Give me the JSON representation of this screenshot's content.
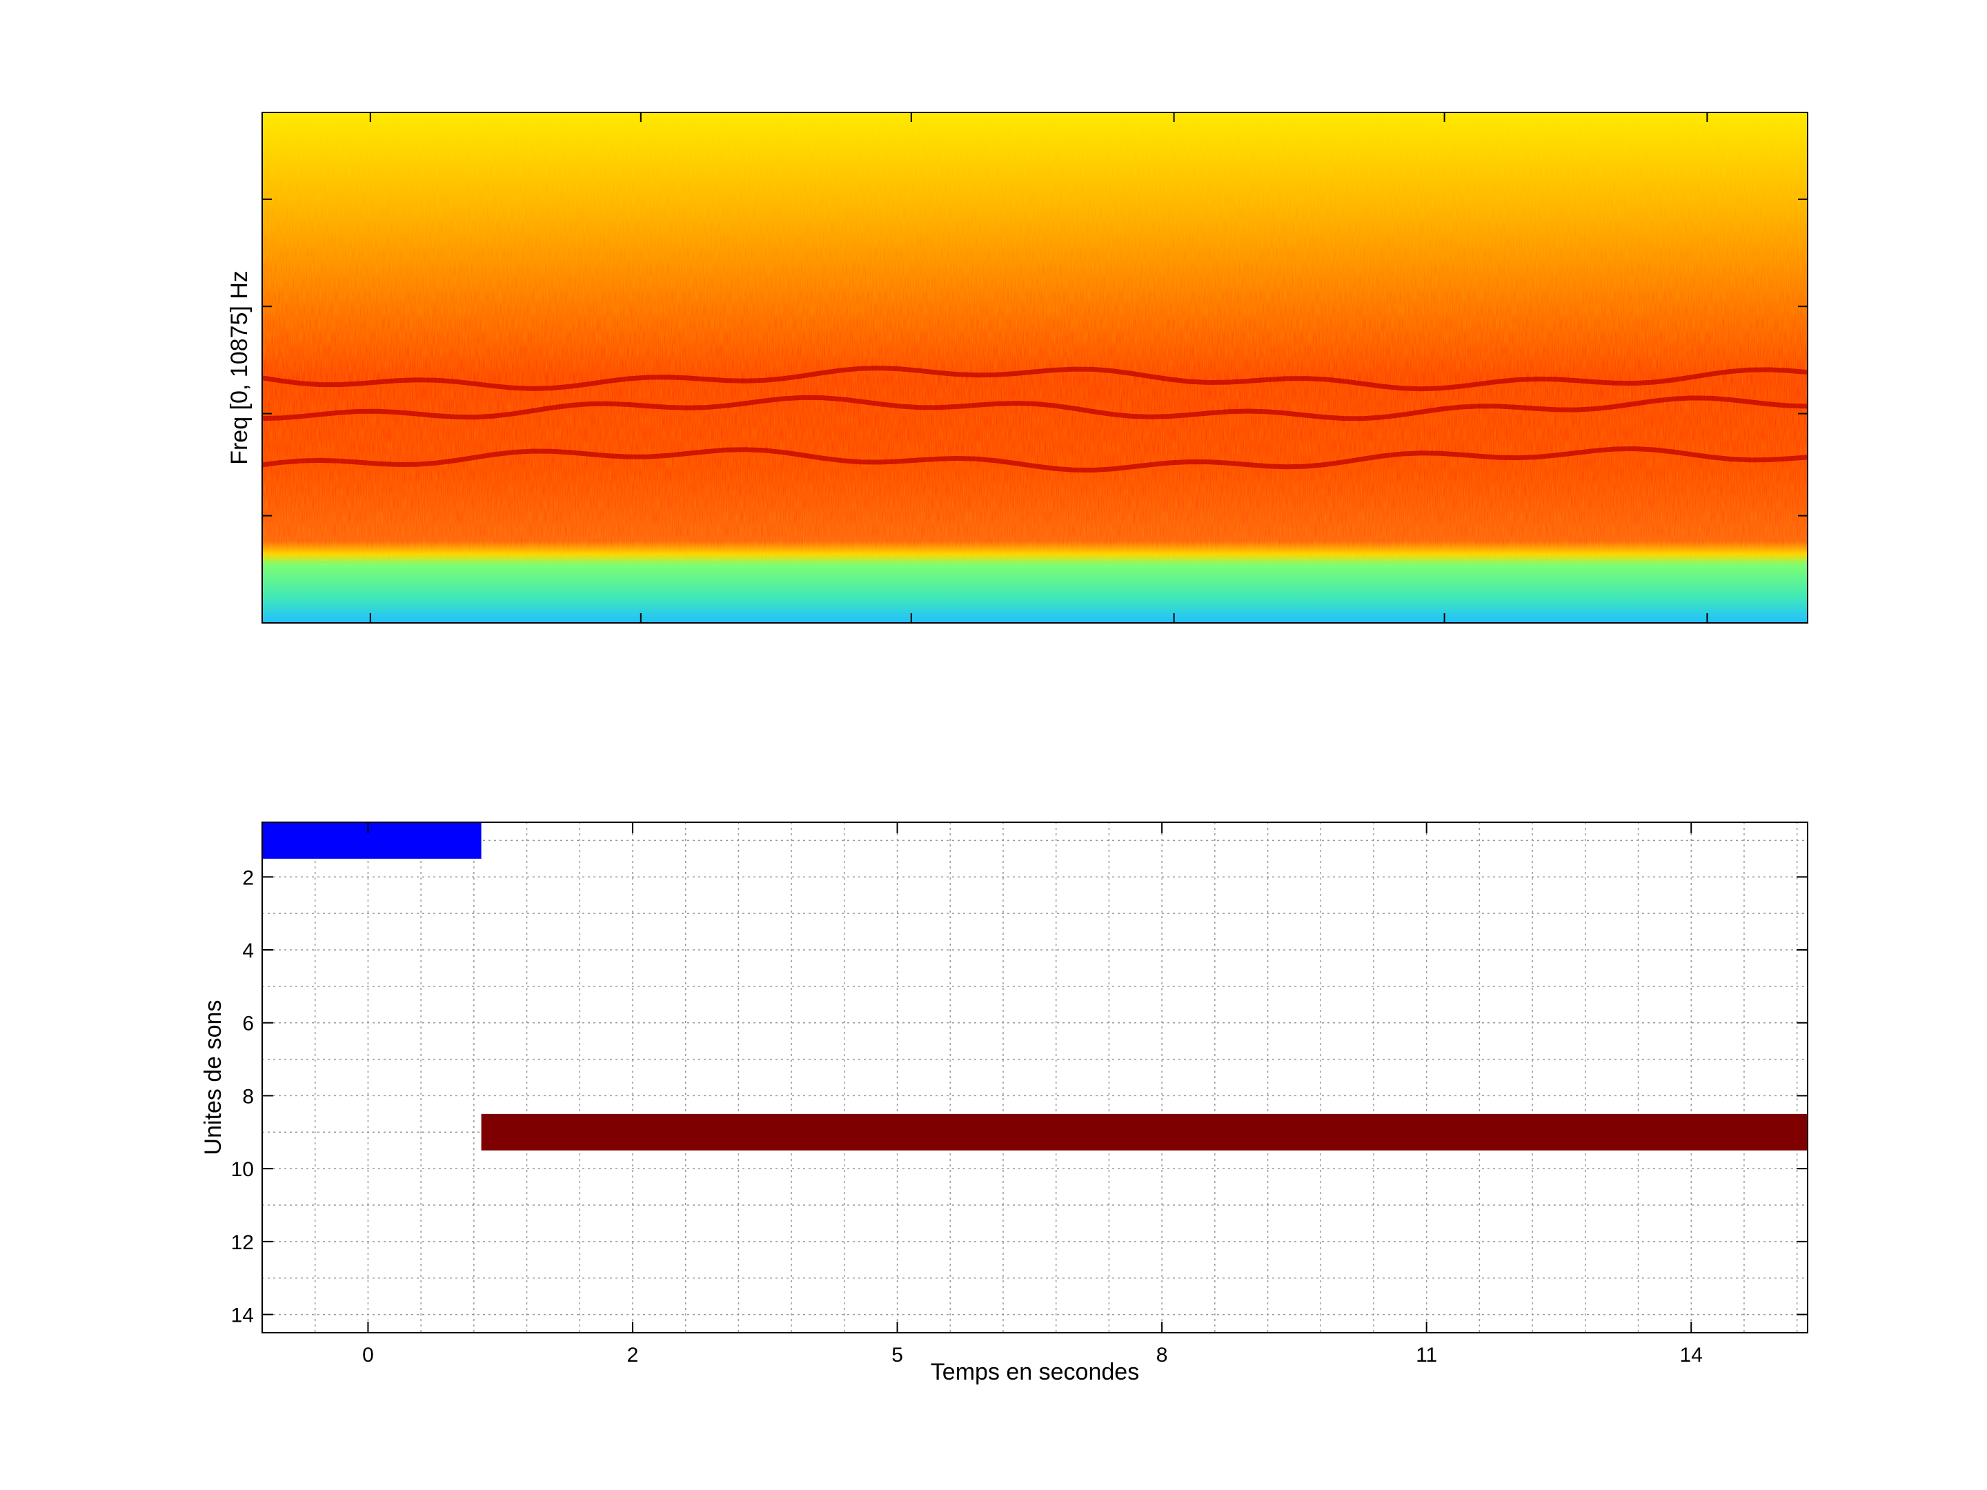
{
  "chart_data": [
    {
      "type": "heatmap",
      "ylabel": "Freq [0, 10875] Hz",
      "xlabel": "",
      "description_colormap": "jet",
      "x_ticks_visible_labels": [],
      "y_ticks_visible_labels": [],
      "ridges": [
        {
          "band": "upper",
          "level": 0.48
        },
        {
          "band": "middle",
          "level": 0.42
        },
        {
          "band": "lower",
          "level": 0.32
        }
      ],
      "low_band": {
        "level_max": 0.12,
        "colormap_range": "cyan-green"
      },
      "colors": {
        "high": "#ffff00",
        "mid": "#ff8000",
        "ridge": "#c00000",
        "low": "#40e0c0"
      }
    },
    {
      "type": "bar",
      "orientation": "horizontal",
      "xlabel": "Temps en secondes",
      "ylabel": "Unites de sons",
      "xlim": [
        -1,
        13.6
      ],
      "ylim": [
        0.5,
        14.5
      ],
      "y_reversed": true,
      "x_ticks": [
        0,
        2,
        5,
        8,
        11,
        14
      ],
      "x_tick_labels": [
        "0",
        "2",
        "5",
        "8",
        "11",
        "14"
      ],
      "x_tick_positions": [
        0,
        2.5,
        5,
        7.5,
        10,
        12.5
      ],
      "y_ticks": [
        2,
        4,
        6,
        8,
        10,
        12,
        14
      ],
      "y_tick_labels": [
        "2",
        "4",
        "6",
        "8",
        "10",
        "12",
        "14"
      ],
      "grid": true,
      "segments": [
        {
          "unit": 1,
          "start": -1,
          "end": 1.07,
          "color": "#0000ff"
        },
        {
          "unit": 9,
          "start": 1.07,
          "end": 13.6,
          "color": "#7f0000"
        }
      ]
    }
  ]
}
